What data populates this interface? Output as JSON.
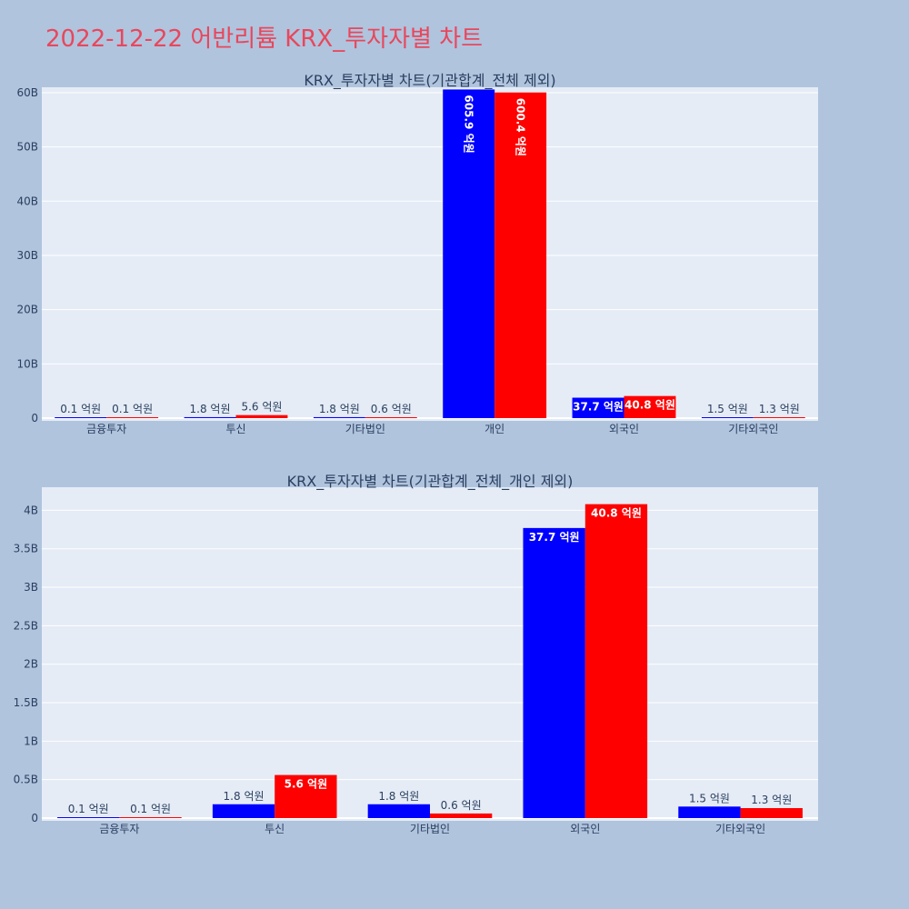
{
  "page": {
    "title": "2022-12-22 어반리튬 KRX_투자자별 차트"
  },
  "chart_data": [
    {
      "type": "bar",
      "title": "KRX_투자자별 차트(기관합계_전체 제외)",
      "categories": [
        "금융투자",
        "투신",
        "기타법인",
        "개인",
        "외국인",
        "기타외국인"
      ],
      "ylim": [
        0,
        61000000000
      ],
      "ytick_values": [
        0,
        10000000000,
        20000000000,
        30000000000,
        40000000000,
        50000000000,
        60000000000
      ],
      "ytick_labels": [
        "0",
        "10B",
        "20B",
        "30B",
        "40B",
        "50B",
        "60B"
      ],
      "grid": true,
      "series": [
        {
          "color": "#0000ff",
          "values": [
            10000000,
            180000000,
            180000000,
            60590000000,
            3770000000,
            150000000
          ],
          "labels": [
            "0.1 억원",
            "1.8 억원",
            "1.8 억원",
            "605.9 억원",
            "37.7 억원",
            "1.5 억원"
          ]
        },
        {
          "color": "#ff0000",
          "values": [
            10000000,
            560000000,
            60000000,
            60040000000,
            4080000000,
            130000000
          ],
          "labels": [
            "0.1 억원",
            "5.6 억원",
            "0.6 억원",
            "600.4 억원",
            "40.8 억원",
            "1.3 억원"
          ]
        }
      ]
    },
    {
      "type": "bar",
      "title": "KRX_투자자별 차트(기관합계_전체_개인 제외)",
      "categories": [
        "금융투자",
        "투신",
        "기타법인",
        "외국인",
        "기타외국인"
      ],
      "ylim": [
        0,
        4300000000
      ],
      "ytick_values": [
        0,
        500000000,
        1000000000,
        1500000000,
        2000000000,
        2500000000,
        3000000000,
        3500000000,
        4000000000
      ],
      "ytick_labels": [
        "0",
        "0.5B",
        "1B",
        "1.5B",
        "2B",
        "2.5B",
        "3B",
        "3.5B",
        "4B"
      ],
      "grid": true,
      "series": [
        {
          "color": "#0000ff",
          "values": [
            10000000,
            180000000,
            180000000,
            3770000000,
            150000000
          ],
          "labels": [
            "0.1 억원",
            "1.8 억원",
            "1.8 억원",
            "37.7 억원",
            "1.5 억원"
          ]
        },
        {
          "color": "#ff0000",
          "values": [
            10000000,
            560000000,
            60000000,
            4080000000,
            130000000
          ],
          "labels": [
            "0.1 억원",
            "5.6 억원",
            "0.6 억원",
            "40.8 억원",
            "1.3 억원"
          ]
        }
      ]
    }
  ]
}
